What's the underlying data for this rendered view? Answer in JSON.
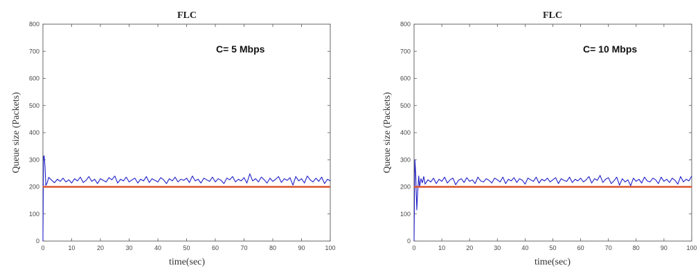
{
  "chart_data": [
    {
      "type": "line",
      "title": "FLC",
      "xlabel": "time(sec)",
      "ylabel": "Queue size (Packets)",
      "annotation": "C= 5 Mbps",
      "xlim": [
        0,
        100
      ],
      "ylim": [
        0,
        800
      ],
      "xticks": [
        0,
        10,
        20,
        30,
        40,
        50,
        60,
        70,
        80,
        90,
        100
      ],
      "yticks": [
        0,
        100,
        200,
        300,
        400,
        500,
        600,
        700,
        800
      ],
      "grid": false,
      "series": [
        {
          "color": "#1f1fc8",
          "x": [
            0,
            0.2,
            0.4,
            0.7,
            1.0,
            1.5,
            2,
            3,
            4,
            5,
            6,
            7,
            8,
            9,
            10,
            11,
            12,
            13,
            14,
            15,
            16,
            17,
            18,
            19,
            20,
            21,
            22,
            23,
            24,
            25,
            26,
            27,
            28,
            29,
            30,
            31,
            32,
            33,
            34,
            35,
            36,
            37,
            38,
            39,
            40,
            41,
            42,
            43,
            44,
            45,
            46,
            47,
            48,
            49,
            50,
            51,
            52,
            53,
            54,
            55,
            56,
            57,
            58,
            59,
            60,
            61,
            62,
            63,
            64,
            65,
            66,
            67,
            68,
            69,
            70,
            71,
            72,
            73,
            74,
            75,
            76,
            77,
            78,
            79,
            80,
            81,
            82,
            83,
            84,
            85,
            86,
            87,
            88,
            89,
            90,
            91,
            92,
            93,
            94,
            95,
            96,
            97,
            98,
            99,
            100
          ],
          "y": [
            0,
            310,
            315,
            280,
            205,
            215,
            235,
            225,
            215,
            228,
            220,
            232,
            218,
            226,
            214,
            230,
            222,
            236,
            216,
            224,
            238,
            220,
            228,
            212,
            230,
            224,
            218,
            234,
            226,
            240,
            214,
            228,
            222,
            236,
            218,
            226,
            232,
            214,
            228,
            222,
            238,
            216,
            230,
            224,
            218,
            234,
            226,
            212,
            230,
            222,
            236,
            218,
            228,
            224,
            232,
            216,
            240,
            222,
            228,
            214,
            232,
            226,
            220,
            236,
            218,
            230,
            224,
            212,
            232,
            226,
            238,
            218,
            228,
            222,
            234,
            214,
            248,
            222,
            230,
            218,
            236,
            226,
            214,
            232,
            220,
            228,
            238,
            216,
            230,
            224,
            234,
            206,
            238,
            222,
            230,
            214,
            240,
            226,
            218,
            232,
            220,
            236,
            212,
            228,
            222
          ]
        },
        {
          "color": "#d9532b",
          "x": [
            0,
            100
          ],
          "y": [
            200,
            200
          ]
        }
      ]
    },
    {
      "type": "line",
      "title": "FLC",
      "xlabel": "time(sec)",
      "ylabel": "Queue size (Packets)",
      "annotation": "C= 10 Mbps",
      "xlim": [
        0,
        100
      ],
      "ylim": [
        0,
        800
      ],
      "xticks": [
        0,
        10,
        20,
        30,
        40,
        50,
        60,
        70,
        80,
        90,
        100
      ],
      "yticks": [
        0,
        100,
        200,
        300,
        400,
        500,
        600,
        700,
        800
      ],
      "grid": false,
      "series": [
        {
          "color": "#1f1fc8",
          "x": [
            0,
            0.3,
            0.6,
            1.0,
            1.3,
            1.7,
            2,
            2.5,
            3,
            3.5,
            4,
            5,
            6,
            7,
            8,
            9,
            10,
            11,
            12,
            13,
            14,
            15,
            16,
            17,
            18,
            19,
            20,
            21,
            22,
            23,
            24,
            25,
            26,
            27,
            28,
            29,
            30,
            31,
            32,
            33,
            34,
            35,
            36,
            37,
            38,
            39,
            40,
            41,
            42,
            43,
            44,
            45,
            46,
            47,
            48,
            49,
            50,
            51,
            52,
            53,
            54,
            55,
            56,
            57,
            58,
            59,
            60,
            61,
            62,
            63,
            64,
            65,
            66,
            67,
            68,
            69,
            70,
            71,
            72,
            73,
            74,
            75,
            76,
            77,
            78,
            79,
            80,
            81,
            82,
            83,
            84,
            85,
            86,
            87,
            88,
            89,
            90,
            91,
            92,
            93,
            94,
            95,
            96,
            97,
            98,
            99,
            100
          ],
          "y": [
            0,
            300,
            250,
            115,
            180,
            240,
            200,
            230,
            215,
            238,
            210,
            226,
            218,
            232,
            212,
            228,
            220,
            236,
            214,
            226,
            232,
            208,
            224,
            230,
            216,
            234,
            220,
            226,
            212,
            236,
            222,
            218,
            230,
            224,
            214,
            232,
            226,
            218,
            236,
            212,
            228,
            222,
            234,
            216,
            230,
            224,
            210,
            232,
            226,
            220,
            236,
            214,
            228,
            222,
            232,
            218,
            226,
            234,
            212,
            230,
            224,
            220,
            236,
            216,
            228,
            222,
            232,
            218,
            226,
            238,
            214,
            230,
            224,
            242,
            216,
            228,
            234,
            212,
            222,
            236,
            206,
            230,
            218,
            226,
            204,
            232,
            220,
            228,
            214,
            236,
            222,
            218,
            232,
            226,
            212,
            236,
            220,
            228,
            216,
            232,
            224,
            210,
            238,
            218,
            228,
            222,
            240
          ]
        },
        {
          "color": "#d9532b",
          "x": [
            0,
            100
          ],
          "y": [
            200,
            200
          ]
        }
      ]
    }
  ]
}
